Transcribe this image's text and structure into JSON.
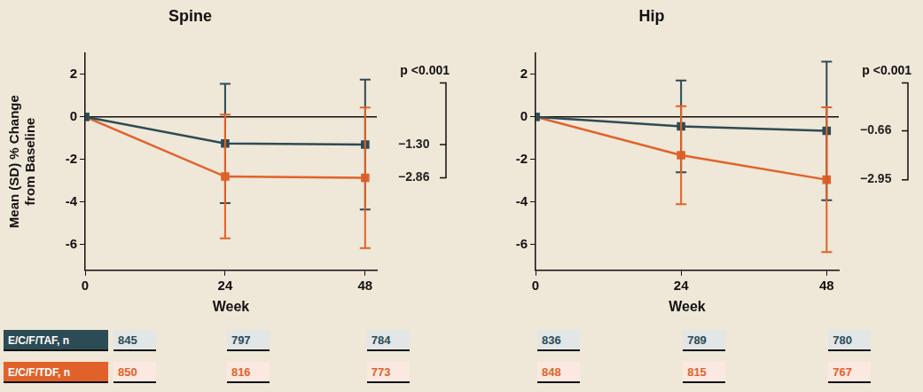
{
  "chart_data": [
    {
      "type": "line",
      "title": "Spine",
      "x": [
        0,
        24,
        48
      ],
      "xlim": [
        0,
        50
      ],
      "xticks": [
        0,
        24,
        48
      ],
      "ylim": [
        -7.2,
        3
      ],
      "yticks": [
        -6,
        -4,
        -2,
        0,
        2
      ],
      "x_label": "Week",
      "y_label": "Mean (SD) % Change from Baseline",
      "grid": false,
      "annotation": "p <0.001",
      "reference_line": 0,
      "series": [
        {
          "color": "#2d4b55",
          "marker": "square",
          "line_style": "solid",
          "values": [
            0,
            -1.25,
            -1.3
          ],
          "sd": [
            null,
            2.8,
            3.05
          ],
          "value_labels": [
            null,
            null,
            "−1.30"
          ]
        },
        {
          "color": "#e0622a",
          "marker": "square",
          "line_style": "solid",
          "values": [
            0,
            -2.8,
            -2.86
          ],
          "sd": [
            null,
            2.9,
            3.3
          ],
          "value_labels": [
            null,
            null,
            "−2.86"
          ]
        }
      ]
    },
    {
      "type": "line",
      "title": "Hip",
      "x": [
        0,
        24,
        48
      ],
      "xlim": [
        0,
        50
      ],
      "xticks": [
        0,
        24,
        48
      ],
      "ylim": [
        -7.2,
        3
      ],
      "yticks": [
        -6,
        -4,
        -2,
        0,
        2
      ],
      "x_label": "Week",
      "grid": false,
      "annotation": "p <0.001",
      "reference_line": 0,
      "series": [
        {
          "color": "#2d4b55",
          "marker": "square",
          "line_style": "solid",
          "values": [
            0,
            -0.45,
            -0.66
          ],
          "sd": [
            null,
            2.15,
            3.25
          ],
          "value_labels": [
            null,
            null,
            "−0.66"
          ]
        },
        {
          "color": "#e0622a",
          "marker": "square",
          "line_style": "solid",
          "values": [
            0,
            -1.8,
            -2.95
          ],
          "sd": [
            null,
            2.3,
            3.4
          ],
          "value_labels": [
            null,
            null,
            "−2.95"
          ]
        }
      ]
    }
  ],
  "n_table": {
    "row_labels": [
      "E/C/F/TAF, n",
      "E/C/F/TDF, n"
    ],
    "colors": [
      "#2d4b55",
      "#e0622a"
    ],
    "counts": [
      [
        [
          845,
          797,
          784
        ],
        [
          850,
          816,
          773
        ]
      ],
      [
        [
          836,
          789,
          780
        ],
        [
          848,
          815,
          767
        ]
      ]
    ]
  }
}
